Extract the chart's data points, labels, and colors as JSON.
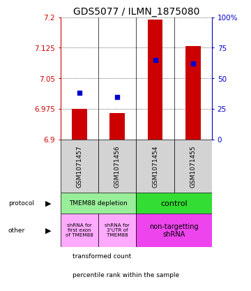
{
  "title": "GDS5077 / ILMN_1875080",
  "samples": [
    "GSM1071457",
    "GSM1071456",
    "GSM1071454",
    "GSM1071455"
  ],
  "bar_values": [
    6.975,
    6.965,
    7.195,
    7.13
  ],
  "dot_percentiles": [
    38,
    35,
    65,
    62
  ],
  "ymin": 6.9,
  "ymax": 7.2,
  "yticks_left": [
    6.9,
    6.975,
    7.05,
    7.125,
    7.2
  ],
  "yticks_right": [
    0,
    25,
    50,
    75,
    100
  ],
  "bar_color": "#cc0000",
  "dot_color": "#0000cc",
  "protocol_labels": [
    "TMEM88 depletion",
    "control"
  ],
  "protocol_colors": [
    "#99ee99",
    "#33dd33"
  ],
  "other_labels": [
    "shRNA for\nfirst exon\nof TMEM88",
    "shRNA for\n3'UTR of\nTMEM88",
    "non-targetting\nshRNA"
  ],
  "other_colors": [
    "#ffaaff",
    "#ffaaff",
    "#ee44ee"
  ],
  "legend_items": [
    "transformed count",
    "percentile rank within the sample"
  ],
  "legend_colors": [
    "#cc0000",
    "#0000cc"
  ],
  "title_fontsize": 10,
  "tick_fontsize": 7.5,
  "sample_fontsize": 6.5
}
